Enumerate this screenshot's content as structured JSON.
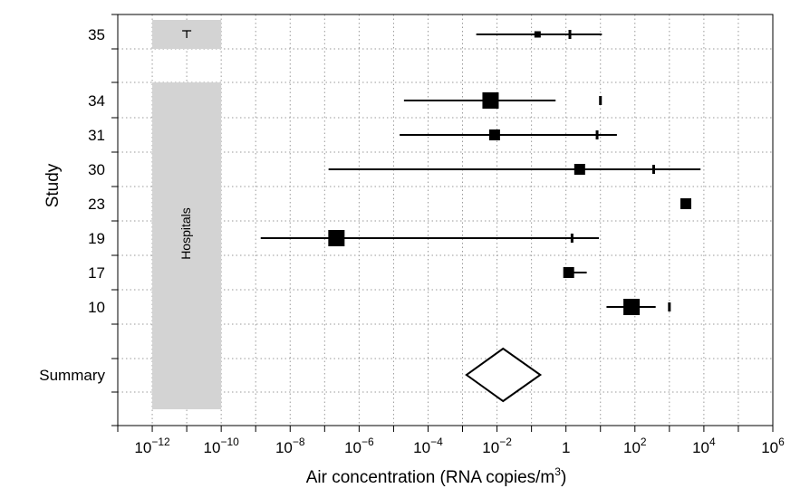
{
  "chart_data": {
    "type": "forest",
    "xlabel": "Air concentration (RNA copies/m",
    "xlabel_sup": "3",
    "xlabel_end": ")",
    "ylabel": "Study",
    "x_scale": "log10",
    "xlim": [
      1e-13,
      1000000.0
    ],
    "x_ticks": [
      {
        "value": 1e-12,
        "base": "10",
        "exp": "−12"
      },
      {
        "value": 1e-10,
        "base": "10",
        "exp": "−10"
      },
      {
        "value": 1e-08,
        "base": "10",
        "exp": "−8"
      },
      {
        "value": 1e-06,
        "base": "10",
        "exp": "−6"
      },
      {
        "value": 0.0001,
        "base": "10",
        "exp": "−4"
      },
      {
        "value": 0.01,
        "base": "10",
        "exp": "−2"
      },
      {
        "value": 1,
        "base": "1",
        "exp": ""
      },
      {
        "value": 100,
        "base": "10",
        "exp": "2"
      },
      {
        "value": 10000,
        "base": "10",
        "exp": "4"
      },
      {
        "value": 1000000,
        "base": "10",
        "exp": "6"
      }
    ],
    "grid": true,
    "bands": [
      {
        "label": "",
        "x_from": 1e-12,
        "x_to": 1e-10,
        "rows": [
          "35"
        ],
        "inner_marker": "T"
      },
      {
        "label": "Hospitals",
        "x_from": 1e-12,
        "x_to": 1e-10,
        "rows": [
          "34",
          "31",
          "30",
          "23",
          "19",
          "17",
          "10",
          "Summary"
        ]
      }
    ],
    "studies": [
      {
        "label": "35",
        "point": 0.15,
        "size": "small",
        "ci": [
          0.0025,
          11
        ],
        "tick": 1.3
      },
      {
        "label": "34",
        "point": 0.0065,
        "size": "large",
        "ci": [
          2e-05,
          0.5
        ],
        "tick": 10
      },
      {
        "label": "31",
        "point": 0.0085,
        "size": "medium",
        "ci": [
          1.5e-05,
          30
        ],
        "tick": 8
      },
      {
        "label": "30",
        "point": 2.5,
        "size": "medium",
        "ci": [
          1.3e-07,
          8000
        ],
        "tick": 350
      },
      {
        "label": "23",
        "point": 3000,
        "size": "medium",
        "ci": null,
        "tick": null
      },
      {
        "label": "19",
        "point": 2.2e-07,
        "size": "large",
        "ci": [
          1.4e-09,
          9
        ],
        "tick": 1.5
      },
      {
        "label": "17",
        "point": 1.2,
        "size": "medium",
        "ci": [
          1.0,
          4.0
        ],
        "tick": null
      },
      {
        "label": "10",
        "point": 80,
        "size": "large",
        "ci": [
          15,
          400
        ],
        "tick": 1000
      }
    ],
    "summary": {
      "label": "Summary",
      "point": 0.015,
      "ci": [
        0.0013,
        0.18
      ]
    }
  }
}
